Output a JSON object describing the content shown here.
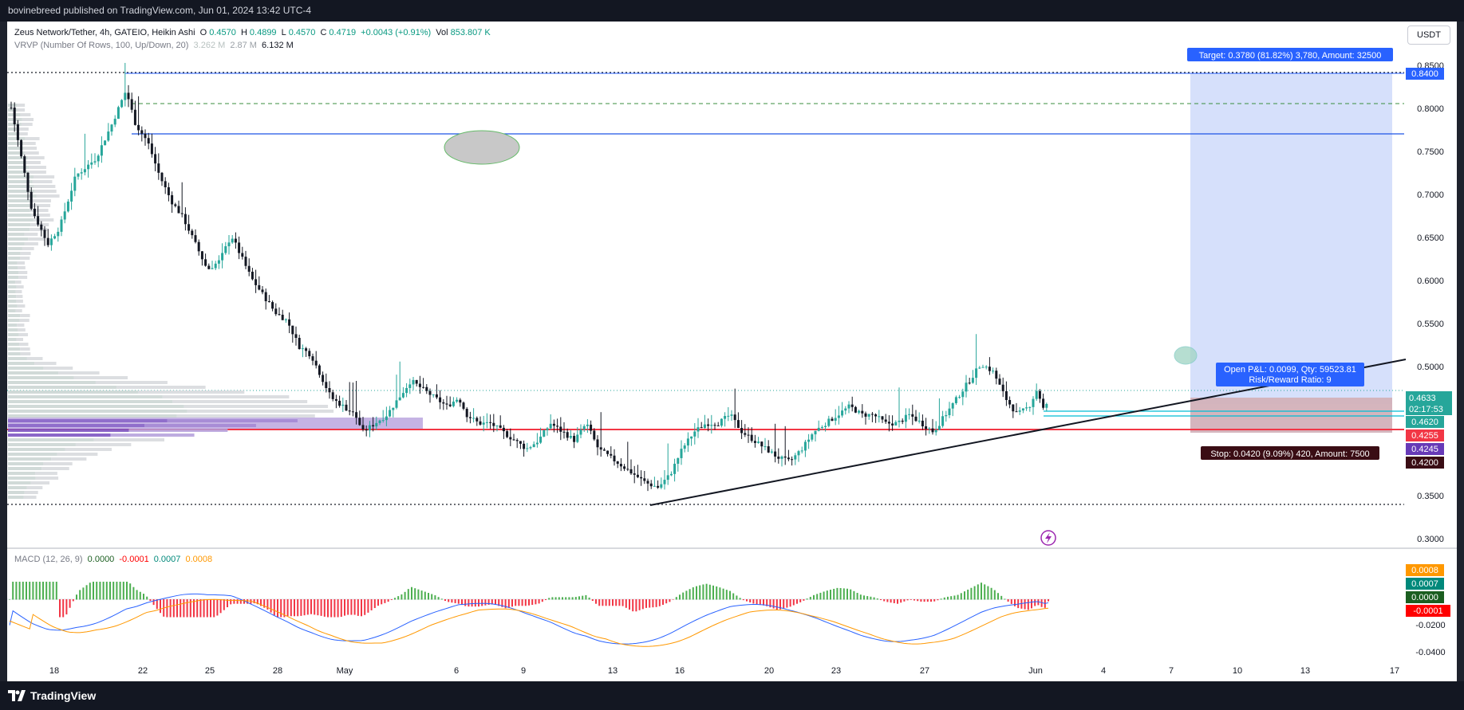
{
  "header": {
    "published_text": "bovinebreed published on TradingView.com, Jun 01, 2024 13:42 UTC-4"
  },
  "legend": {
    "symbol": "Zeus Network/Tether, 4h, GATEIO, Heikin Ashi",
    "o_label": "O",
    "o_value": "0.4570",
    "h_label": "H",
    "h_value": "0.4899",
    "l_label": "L",
    "l_value": "0.4570",
    "c_label": "C",
    "c_value": "0.4719",
    "change": "+0.0043 (+0.91%)",
    "vol_label": "Vol",
    "vol_value": "853.807 K",
    "vrvp_label": "VRVP (Number Of Rows, 100, Up/Down, 20)",
    "vrvp_v1": "3.262 M",
    "vrvp_v2": "2.87 M",
    "vrvp_v3": "6.132 M",
    "macd_label": "MACD (12, 26, 9)",
    "macd_v1": "0.0000",
    "macd_v2": "-0.0001",
    "macd_v3": "0.0007",
    "macd_v4": "0.0008"
  },
  "currency_button": "USDT",
  "price_axis": {
    "ticks": [
      "0.8500",
      "0.8000",
      "0.7500",
      "0.7000",
      "0.6500",
      "0.6000",
      "0.5500",
      "0.5000",
      "0.3500",
      "0.3000"
    ]
  },
  "macd_axis": {
    "ticks": [
      "-0.0200",
      "-0.0400"
    ]
  },
  "time_axis": {
    "ticks": [
      "18",
      "22",
      "25",
      "28",
      "May",
      "6",
      "9",
      "13",
      "16",
      "20",
      "23",
      "27",
      "Jun",
      "4",
      "7",
      "10",
      "13",
      "17"
    ]
  },
  "price_labels": {
    "target_level": "0.8400",
    "current_price": "0.4633",
    "countdown": "02:17:53",
    "level_4620": "0.4620",
    "level_4255": "0.4255",
    "level_4245": "0.4245",
    "level_4200": "0.4200"
  },
  "macd_labels": {
    "v_0008": "0.0008",
    "v_0007": "0.0007",
    "v_0000": "0.0000",
    "v_neg0001": "-0.0001"
  },
  "position": {
    "target_text": "Target: 0.3780 (81.82%) 3,780, Amount: 32500",
    "pnl_text": "Open P&L: 0.0099, Qty: 59523.81",
    "rr_text": "Risk/Reward Ratio: 9",
    "stop_text": "Stop: 0.0420 (9.09%) 420, Amount: 7500"
  },
  "footer": {
    "brand": "TradingView"
  },
  "colors": {
    "up": "#26a69a",
    "down": "#131722",
    "macd_hist_up": "#26a69a",
    "macd_hist_pos": "#4caf50",
    "macd_hist_neg": "#f23645",
    "macd_line": "#2962ff",
    "signal_line": "#ff9800",
    "target_zone": "#d6e0fb",
    "stop_zone": "#f2c6c6",
    "accent_blue": "#2962ff"
  },
  "chart_data": [
    {
      "type": "candlestick",
      "title": "Zeus Network/Tether, 4h, GATEIO, Heikin Ashi",
      "x": [
        "18",
        "22",
        "25",
        "28",
        "May",
        "6",
        "9",
        "13",
        "16",
        "20",
        "23",
        "27",
        "Jun"
      ],
      "close_approx": [
        0.69,
        0.77,
        0.66,
        0.58,
        0.43,
        0.48,
        0.41,
        0.36,
        0.44,
        0.38,
        0.46,
        0.5,
        0.463
      ],
      "ylim": [
        0.3,
        0.86
      ],
      "levels": [
        0.84,
        0.77,
        0.4633,
        0.462,
        0.4255,
        0.4245,
        0.42,
        0.335
      ],
      "trendline": {
        "from": [
          "May 14",
          0.335
        ],
        "to": [
          "Jun 9",
          0.505
        ]
      }
    },
    {
      "type": "bar",
      "title": "MACD (12, 26, 9)",
      "values_histogram_approx": [
        -0.004,
        0.01,
        -0.008,
        -0.006,
        0.002,
        -0.003,
        0.006,
        -0.004,
        0.009,
        -0.005,
        0.006,
        0.001,
        0.007,
        -0.004,
        0.0
      ],
      "macd": "0.0007",
      "signal": "0.0008"
    }
  ]
}
